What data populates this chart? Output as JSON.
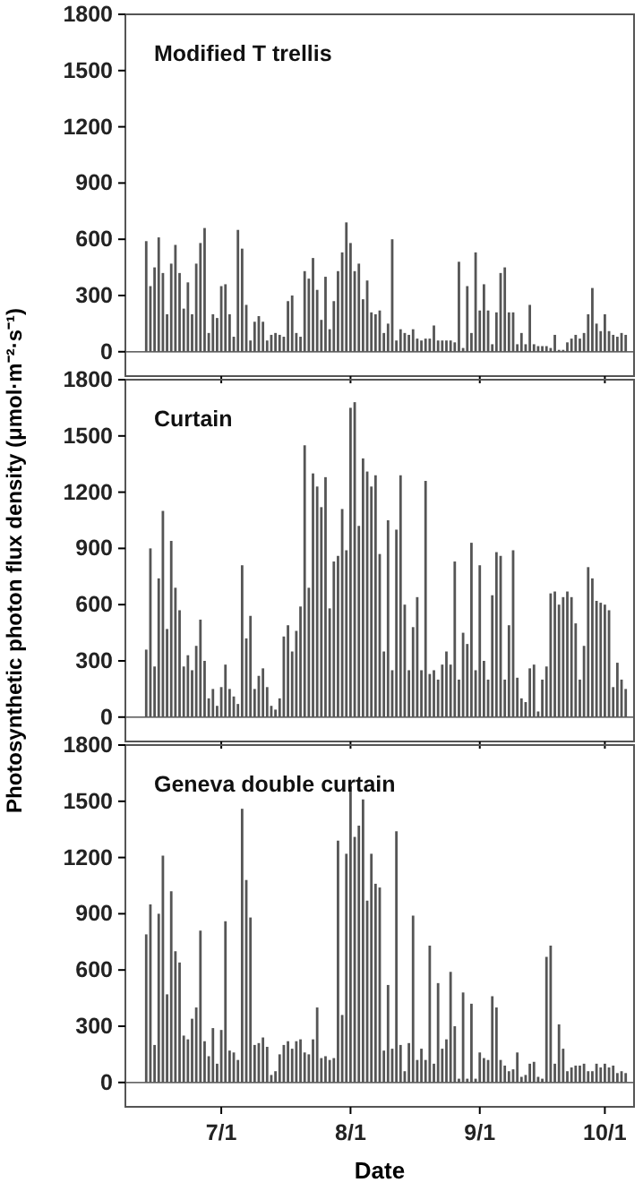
{
  "chart_data": [
    {
      "type": "bar",
      "title": "Modified T trellis",
      "color": "#555555",
      "xlim": [
        "--06-08",
        "--10-08"
      ],
      "ylim": [
        -130,
        1800
      ],
      "yticks": [
        0,
        300,
        600,
        900,
        1200,
        1500,
        1800
      ],
      "xticks": [
        {
          "value": "--07-01",
          "label": null
        },
        {
          "value": "--08-01",
          "label": null
        },
        {
          "value": "--09-01",
          "label": null
        },
        {
          "value": "--10-01",
          "label": null
        }
      ],
      "tick_labels": "y",
      "x": [
        "--06-13",
        "--06-14",
        "--06-15",
        "--06-16",
        "--06-17",
        "--06-18",
        "--06-19",
        "--06-20",
        "--06-21",
        "--06-22",
        "--06-23",
        "--06-24",
        "--06-25",
        "--06-26",
        "--06-27",
        "--06-28",
        "--06-29",
        "--06-30",
        "--07-01",
        "--07-02",
        "--07-03",
        "--07-04",
        "--07-05",
        "--07-06",
        "--07-07",
        "--07-08",
        "--07-09",
        "--07-10",
        "--07-11",
        "--07-12",
        "--07-13",
        "--07-14",
        "--07-15",
        "--07-16",
        "--07-17",
        "--07-18",
        "--07-19",
        "--07-20",
        "--07-21",
        "--07-22",
        "--07-23",
        "--07-24",
        "--07-25",
        "--07-26",
        "--07-27",
        "--07-28",
        "--07-29",
        "--07-30",
        "--07-31",
        "--08-01",
        "--08-02",
        "--08-03",
        "--08-04",
        "--08-05",
        "--08-06",
        "--08-07",
        "--08-08",
        "--08-09",
        "--08-10",
        "--08-11",
        "--08-12",
        "--08-13",
        "--08-14",
        "--08-15",
        "--08-16",
        "--08-17",
        "--08-18",
        "--08-19",
        "--08-20",
        "--08-21",
        "--08-22",
        "--08-23",
        "--08-24",
        "--08-25",
        "--08-26",
        "--08-27",
        "--08-28",
        "--08-29",
        "--08-30",
        "--08-31",
        "--09-01",
        "--09-02",
        "--09-03",
        "--09-04",
        "--09-05",
        "--09-06",
        "--09-07",
        "--09-08",
        "--09-09",
        "--09-10",
        "--09-11",
        "--09-12",
        "--09-13",
        "--09-14",
        "--09-15",
        "--09-16",
        "--09-17",
        "--09-18",
        "--09-19",
        "--09-20",
        "--09-21",
        "--09-22",
        "--09-23",
        "--09-24",
        "--09-25",
        "--09-26",
        "--09-27",
        "--09-28",
        "--09-29",
        "--09-30",
        "--10-01",
        "--10-02",
        "--10-03",
        "--10-04",
        "--10-05",
        "--10-06"
      ],
      "values": [
        590,
        350,
        450,
        610,
        420,
        200,
        470,
        570,
        420,
        230,
        370,
        200,
        470,
        580,
        660,
        100,
        200,
        180,
        350,
        360,
        200,
        80,
        650,
        550,
        250,
        60,
        160,
        190,
        160,
        60,
        90,
        100,
        90,
        80,
        270,
        300,
        100,
        80,
        430,
        390,
        500,
        330,
        170,
        400,
        120,
        270,
        430,
        530,
        690,
        580,
        430,
        470,
        280,
        380,
        210,
        200,
        220,
        100,
        150,
        600,
        60,
        120,
        100,
        90,
        120,
        70,
        60,
        70,
        70,
        140,
        60,
        60,
        60,
        60,
        50,
        480,
        20,
        350,
        100,
        530,
        220,
        360,
        220,
        40,
        210,
        420,
        450,
        210,
        210,
        40,
        100,
        40,
        250,
        40,
        30,
        30,
        30,
        20,
        90,
        10,
        10,
        50,
        70,
        90,
        70,
        100,
        200,
        340,
        150,
        110,
        200,
        110,
        90,
        80,
        100,
        90
      ]
    },
    {
      "type": "bar",
      "title": "Curtain",
      "ylabel": "Photosynthetic photon flux density (μmol·m⁻²·s⁻¹)",
      "color": "#555555",
      "xlim": [
        "--06-08",
        "--10-08"
      ],
      "ylim": [
        -130,
        1800
      ],
      "yticks": [
        0,
        300,
        600,
        900,
        1200,
        1500,
        1800
      ],
      "xticks": [
        {
          "value": "--07-01",
          "label": null
        },
        {
          "value": "--08-01",
          "label": null
        },
        {
          "value": "--09-01",
          "label": null
        },
        {
          "value": "--10-01",
          "label": null
        }
      ],
      "tick_labels": "y",
      "x": [
        "--06-13",
        "--06-14",
        "--06-15",
        "--06-16",
        "--06-17",
        "--06-18",
        "--06-19",
        "--06-20",
        "--06-21",
        "--06-22",
        "--06-23",
        "--06-24",
        "--06-25",
        "--06-26",
        "--06-27",
        "--06-28",
        "--06-29",
        "--06-30",
        "--07-01",
        "--07-02",
        "--07-03",
        "--07-04",
        "--07-05",
        "--07-06",
        "--07-07",
        "--07-08",
        "--07-09",
        "--07-10",
        "--07-11",
        "--07-12",
        "--07-13",
        "--07-14",
        "--07-15",
        "--07-16",
        "--07-17",
        "--07-18",
        "--07-19",
        "--07-20",
        "--07-21",
        "--07-22",
        "--07-23",
        "--07-24",
        "--07-25",
        "--07-26",
        "--07-27",
        "--07-28",
        "--07-29",
        "--07-30",
        "--07-31",
        "--08-01",
        "--08-02",
        "--08-03",
        "--08-04",
        "--08-05",
        "--08-06",
        "--08-07",
        "--08-08",
        "--08-09",
        "--08-10",
        "--08-11",
        "--08-12",
        "--08-13",
        "--08-14",
        "--08-15",
        "--08-16",
        "--08-17",
        "--08-18",
        "--08-19",
        "--08-20",
        "--08-21",
        "--08-22",
        "--08-23",
        "--08-24",
        "--08-25",
        "--08-26",
        "--08-27",
        "--08-28",
        "--08-29",
        "--08-30",
        "--08-31",
        "--09-01",
        "--09-02",
        "--09-03",
        "--09-04",
        "--09-05",
        "--09-06",
        "--09-07",
        "--09-08",
        "--09-09",
        "--09-10",
        "--09-11",
        "--09-12",
        "--09-13",
        "--09-14",
        "--09-15",
        "--09-16",
        "--09-17",
        "--09-18",
        "--09-19",
        "--09-20",
        "--09-21",
        "--09-22",
        "--09-23",
        "--09-24",
        "--09-25",
        "--09-26",
        "--09-27",
        "--09-28",
        "--09-29",
        "--09-30",
        "--10-01",
        "--10-02",
        "--10-03",
        "--10-04",
        "--10-05",
        "--10-06"
      ],
      "values": [
        360,
        900,
        270,
        740,
        1100,
        470,
        940,
        690,
        570,
        270,
        330,
        250,
        380,
        520,
        300,
        100,
        150,
        60,
        160,
        280,
        150,
        110,
        70,
        810,
        420,
        540,
        150,
        220,
        260,
        160,
        60,
        40,
        100,
        430,
        490,
        350,
        460,
        590,
        1450,
        690,
        1300,
        1230,
        1120,
        1280,
        580,
        830,
        860,
        1110,
        890,
        1650,
        1680,
        1020,
        1380,
        1310,
        1230,
        1290,
        870,
        350,
        1050,
        250,
        1000,
        1290,
        600,
        250,
        480,
        640,
        250,
        1260,
        230,
        250,
        200,
        280,
        350,
        280,
        830,
        200,
        450,
        390,
        930,
        250,
        810,
        300,
        200,
        650,
        880,
        860,
        200,
        490,
        890,
        210,
        100,
        80,
        260,
        280,
        30,
        200,
        270,
        660,
        670,
        600,
        640,
        670,
        640,
        500,
        200,
        380,
        800,
        740,
        620,
        610,
        600,
        570,
        160,
        290,
        200,
        150
      ]
    },
    {
      "type": "bar",
      "title": "Geneva double curtain",
      "xlabel": "Date",
      "color": "#555555",
      "xlim": [
        "--06-08",
        "--10-08"
      ],
      "ylim": [
        -130,
        1800
      ],
      "yticks": [
        0,
        300,
        600,
        900,
        1200,
        1500,
        1800
      ],
      "xticks": [
        {
          "value": "--07-01",
          "label": "7/1"
        },
        {
          "value": "--08-01",
          "label": "8/1"
        },
        {
          "value": "--09-01",
          "label": "9/1"
        },
        {
          "value": "--10-01",
          "label": "10/1"
        }
      ],
      "x": [
        "--06-13",
        "--06-14",
        "--06-15",
        "--06-16",
        "--06-17",
        "--06-18",
        "--06-19",
        "--06-20",
        "--06-21",
        "--06-22",
        "--06-23",
        "--06-24",
        "--06-25",
        "--06-26",
        "--06-27",
        "--06-28",
        "--06-29",
        "--06-30",
        "--07-01",
        "--07-02",
        "--07-03",
        "--07-04",
        "--07-05",
        "--07-06",
        "--07-07",
        "--07-08",
        "--07-09",
        "--07-10",
        "--07-11",
        "--07-12",
        "--07-13",
        "--07-14",
        "--07-15",
        "--07-16",
        "--07-17",
        "--07-18",
        "--07-19",
        "--07-20",
        "--07-21",
        "--07-22",
        "--07-23",
        "--07-24",
        "--07-25",
        "--07-26",
        "--07-27",
        "--07-28",
        "--07-29",
        "--07-30",
        "--07-31",
        "--08-01",
        "--08-02",
        "--08-03",
        "--08-04",
        "--08-05",
        "--08-06",
        "--08-07",
        "--08-08",
        "--08-09",
        "--08-10",
        "--08-11",
        "--08-12",
        "--08-13",
        "--08-14",
        "--08-15",
        "--08-16",
        "--08-17",
        "--08-18",
        "--08-19",
        "--08-20",
        "--08-21",
        "--08-22",
        "--08-23",
        "--08-24",
        "--08-25",
        "--08-26",
        "--08-27",
        "--08-28",
        "--08-29",
        "--08-30",
        "--08-31",
        "--09-01",
        "--09-02",
        "--09-03",
        "--09-04",
        "--09-05",
        "--09-06",
        "--09-07",
        "--09-08",
        "--09-09",
        "--09-10",
        "--09-11",
        "--09-12",
        "--09-13",
        "--09-14",
        "--09-15",
        "--09-16",
        "--09-17",
        "--09-18",
        "--09-19",
        "--09-20",
        "--09-21",
        "--09-22",
        "--09-23",
        "--09-24",
        "--09-25",
        "--09-26",
        "--09-27",
        "--09-28",
        "--09-29",
        "--09-30",
        "--10-01",
        "--10-02",
        "--10-03",
        "--10-04",
        "--10-05",
        "--10-06"
      ],
      "values": [
        790,
        950,
        200,
        900,
        1210,
        470,
        1020,
        700,
        640,
        250,
        230,
        340,
        400,
        810,
        220,
        140,
        290,
        100,
        280,
        860,
        170,
        160,
        120,
        1460,
        1080,
        880,
        200,
        210,
        240,
        190,
        40,
        60,
        150,
        200,
        220,
        180,
        220,
        230,
        160,
        150,
        230,
        400,
        130,
        140,
        120,
        130,
        1290,
        360,
        1220,
        1580,
        1310,
        1370,
        1510,
        970,
        1220,
        1060,
        1040,
        170,
        520,
        180,
        1340,
        200,
        60,
        210,
        890,
        120,
        180,
        120,
        730,
        100,
        530,
        180,
        230,
        590,
        300,
        20,
        480,
        20,
        420,
        20,
        160,
        130,
        120,
        460,
        400,
        120,
        90,
        60,
        70,
        160,
        30,
        40,
        100,
        110,
        30,
        20,
        670,
        730,
        100,
        310,
        180,
        60,
        80,
        90,
        90,
        100,
        60,
        60,
        100,
        80,
        100,
        80,
        90,
        50,
        60,
        50
      ]
    }
  ]
}
